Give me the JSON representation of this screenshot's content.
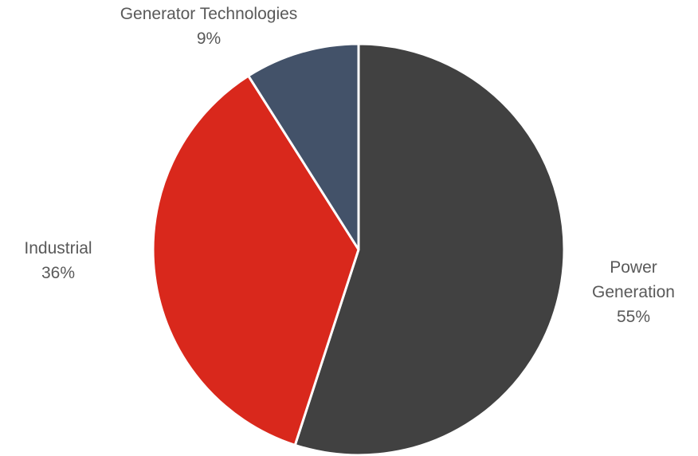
{
  "chart_data": {
    "type": "pie",
    "title": "",
    "slices": [
      {
        "name": "Power Generation",
        "value": 55,
        "value_label": "55%",
        "color": "#414141"
      },
      {
        "name": "Industrial",
        "value": 36,
        "value_label": "36%",
        "color": "#d9281c"
      },
      {
        "name": "Generator Technologies",
        "value": 9,
        "value_label": "9%",
        "color": "#435269"
      }
    ],
    "start_angle": "12 o'clock",
    "direction": "clockwise",
    "legend": "none",
    "labels": "outside, category name above percentage"
  }
}
